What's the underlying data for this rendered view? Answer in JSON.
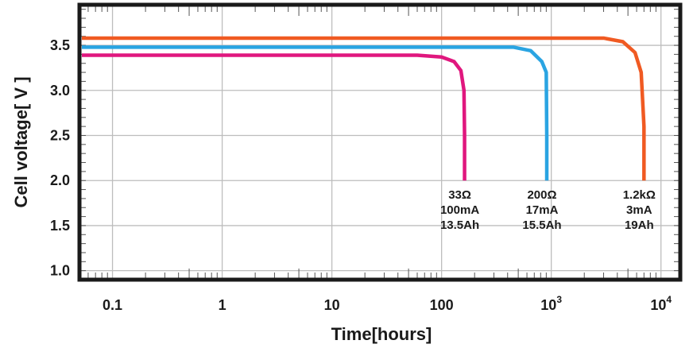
{
  "chart_data": {
    "type": "line",
    "xscale": "log",
    "xlabel": "Time[hours]",
    "ylabel": "Cell voltage[ V ]",
    "xlim": [
      0.05,
      15000
    ],
    "ylim": [
      0.9,
      3.95
    ],
    "grid": true,
    "x_ticks": [
      {
        "value": 0.1,
        "label": "0.1"
      },
      {
        "value": 1,
        "label": "1"
      },
      {
        "value": 10,
        "label": "10"
      },
      {
        "value": 100,
        "label": "100"
      },
      {
        "value": 1000,
        "label": "10",
        "exp": "3"
      },
      {
        "value": 10000,
        "label": "10",
        "exp": "4"
      }
    ],
    "y_ticks": [
      {
        "value": 1.0,
        "label": "1.0"
      },
      {
        "value": 1.5,
        "label": "1.5"
      },
      {
        "value": 2.0,
        "label": "2.0"
      },
      {
        "value": 2.5,
        "label": "2.5"
      },
      {
        "value": 3.0,
        "label": "3.0"
      },
      {
        "value": 3.5,
        "label": "3.5"
      }
    ],
    "series": [
      {
        "color": "#e0177e",
        "x": [
          0.05,
          60,
          100,
          130,
          150,
          160,
          162,
          162
        ],
        "y": [
          3.39,
          3.39,
          3.37,
          3.32,
          3.22,
          3.0,
          2.5,
          2.0
        ],
        "annotation": [
          "33Ω",
          "100mA",
          "13.5Ah"
        ]
      },
      {
        "color": "#2aa4e2",
        "x": [
          0.05,
          450,
          650,
          820,
          900,
          910,
          910
        ],
        "y": [
          3.48,
          3.48,
          3.44,
          3.32,
          3.2,
          2.5,
          2.0
        ],
        "annotation": [
          "200Ω",
          "17mA",
          "15.5Ah"
        ]
      },
      {
        "color": "#f05a22",
        "x": [
          0.05,
          3000,
          4500,
          5800,
          6600,
          7000,
          7000
        ],
        "y": [
          3.58,
          3.58,
          3.54,
          3.42,
          3.2,
          2.6,
          2.0
        ],
        "annotation": [
          "1.2kΩ",
          "3mA",
          "19Ah"
        ]
      }
    ]
  }
}
